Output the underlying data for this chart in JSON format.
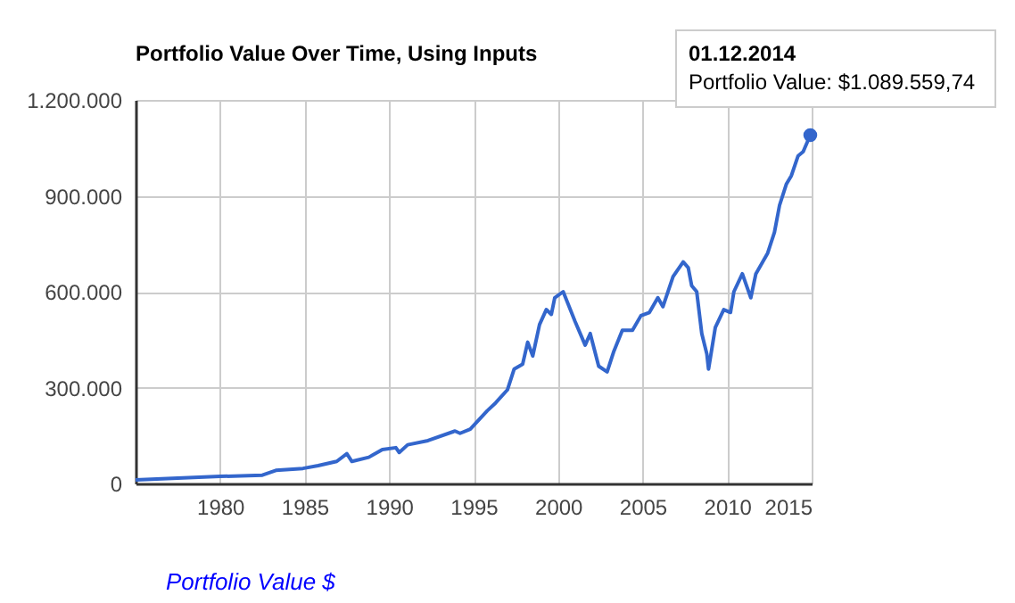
{
  "chart_data": {
    "type": "line",
    "title": "Portfolio Value Over Time, Using Inputs",
    "x": [
      1975.0,
      1980.0,
      1982.5,
      1983.3,
      1984.9,
      1985.8,
      1986.9,
      1987.5,
      1987.8,
      1988.8,
      1989.6,
      1990.4,
      1990.6,
      1991.1,
      1992.3,
      1993.9,
      1994.2,
      1994.8,
      1995.8,
      1996.3,
      1997.0,
      1997.4,
      1997.9,
      1998.2,
      1998.5,
      1998.9,
      1999.3,
      1999.6,
      1999.8,
      2000.3,
      2001.0,
      2001.6,
      2001.9,
      2002.4,
      2002.9,
      2003.3,
      2003.8,
      2004.4,
      2004.9,
      2005.4,
      2005.9,
      2006.2,
      2006.8,
      2007.4,
      2007.7,
      2007.9,
      2008.2,
      2008.5,
      2008.8,
      2008.9,
      2009.3,
      2009.8,
      2010.2,
      2010.4,
      2010.9,
      2011.4,
      2011.7,
      2012.1,
      2012.4,
      2012.8,
      2013.1,
      2013.5,
      2013.8,
      2014.2,
      2014.5,
      2014.92
    ],
    "series": [
      {
        "name": "Portfolio Value $",
        "color": "#3366cc",
        "values": [
          11000,
          22000,
          26000,
          41000,
          47000,
          56000,
          69000,
          93000,
          69000,
          82000,
          106000,
          112000,
          97000,
          121000,
          134000,
          164000,
          157000,
          170000,
          227000,
          252000,
          293000,
          358000,
          373000,
          442000,
          399000,
          497000,
          544000,
          529000,
          581000,
          600000,
          507000,
          433000,
          469000,
          367000,
          349000,
          414000,
          479000,
          479000,
          525000,
          535000,
          581000,
          553000,
          647000,
          693000,
          675000,
          619000,
          600000,
          469000,
          405000,
          358000,
          488000,
          544000,
          535000,
          600000,
          656000,
          581000,
          656000,
          693000,
          721000,
          786000,
          870000,
          936000,
          963000,
          1025000,
          1038000,
          1090000
        ]
      }
    ],
    "xlim": [
      1975,
      2015
    ],
    "xticks": [
      1980,
      1985,
      1990,
      1995,
      2000,
      2005,
      2010,
      2015
    ],
    "ylim": [
      0,
      1200000
    ],
    "yticks": [
      0,
      {
        "value": 300000,
        "label": "300.000"
      },
      {
        "value": 600000,
        "label": "600.000"
      },
      {
        "value": 900000,
        "label": "900.000"
      },
      {
        "value": 1200000,
        "label": "1.200.000"
      }
    ],
    "grid": true,
    "legend": "bottom",
    "annotations": [
      {
        "text": "01.12.2014\nPortfolio Value: $1.089.559,74",
        "x": 2014.92,
        "y": 1089559.74
      }
    ]
  }
}
